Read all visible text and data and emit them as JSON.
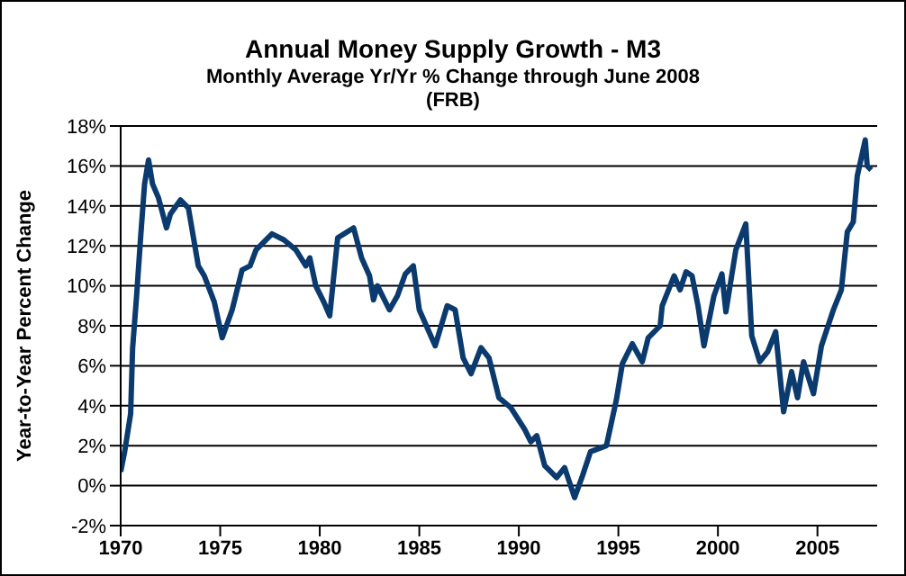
{
  "chart_data": {
    "type": "line",
    "title": "Annual Money Supply Growth - M3",
    "subtitle": "Monthly Average Yr/Yr % Change through June 2008",
    "annotations": [
      "(FRB)"
    ],
    "ylabel": "Year-to-Year Percent Change",
    "x": [
      1970.0,
      1970.2,
      1970.5,
      1970.6,
      1970.8,
      1971.0,
      1971.2,
      1971.4,
      1971.6,
      1971.9,
      1972.3,
      1972.5,
      1973.0,
      1973.4,
      1973.9,
      1974.2,
      1974.7,
      1975.1,
      1975.6,
      1976.1,
      1976.5,
      1976.8,
      1977.6,
      1978.2,
      1978.8,
      1979.3,
      1979.5,
      1979.8,
      1980.2,
      1980.5,
      1980.9,
      1981.7,
      1982.1,
      1982.5,
      1982.7,
      1982.9,
      1983.5,
      1983.9,
      1984.3,
      1984.7,
      1985.0,
      1985.8,
      1986.4,
      1986.8,
      1987.2,
      1987.6,
      1988.1,
      1988.5,
      1989.0,
      1989.6,
      1990.3,
      1990.6,
      1990.9,
      1991.3,
      1991.9,
      1992.3,
      1992.8,
      1993.2,
      1993.6,
      1994.4,
      1994.9,
      1995.2,
      1995.7,
      1996.2,
      1996.5,
      1997.1,
      1997.2,
      1997.8,
      1998.1,
      1998.4,
      1998.7,
      1999.0,
      1999.3,
      1999.8,
      2000.2,
      2000.4,
      2000.9,
      2001.4,
      2001.7,
      2002.1,
      2002.5,
      2002.9,
      2003.3,
      2003.7,
      2004.0,
      2004.3,
      2004.8,
      2005.2,
      2005.8,
      2006.2,
      2006.5,
      2006.8,
      2007.0,
      2007.4,
      2007.5,
      2007.7
    ],
    "series": [
      {
        "color": "#0b3a6e",
        "values": [
          0.7,
          1.7,
          3.6,
          6.9,
          9.5,
          12.4,
          15.1,
          16.3,
          15.1,
          14.4,
          12.9,
          13.6,
          14.3,
          13.9,
          11.0,
          10.5,
          9.2,
          7.4,
          8.8,
          10.8,
          11.0,
          11.8,
          12.6,
          12.3,
          11.8,
          11.0,
          11.4,
          10.0,
          9.2,
          8.5,
          12.4,
          12.9,
          11.4,
          10.5,
          9.3,
          10.0,
          8.8,
          9.5,
          10.6,
          11.0,
          8.8,
          7.0,
          9.0,
          8.8,
          6.4,
          5.6,
          6.9,
          6.4,
          4.4,
          3.9,
          2.8,
          2.2,
          2.5,
          1.0,
          0.4,
          0.9,
          -0.6,
          0.5,
          1.7,
          2.0,
          4.3,
          6.1,
          7.1,
          6.2,
          7.4,
          8.0,
          9.0,
          10.5,
          9.8,
          10.7,
          10.5,
          9.0,
          7.0,
          9.5,
          10.6,
          8.7,
          11.8,
          13.1,
          7.5,
          6.2,
          6.7,
          7.7,
          3.7,
          5.7,
          4.4,
          6.2,
          4.6,
          7.0,
          8.8,
          9.8,
          12.7,
          13.2,
          15.5,
          17.3,
          16.0,
          15.8
        ]
      }
    ],
    "xlim": [
      1970,
      2008
    ],
    "xticks": [
      1970,
      1975,
      1980,
      1985,
      1990,
      1995,
      2000,
      2005
    ],
    "ylim": [
      -2,
      18
    ],
    "yticks": [
      {
        "value": -2,
        "label": "-2%"
      },
      {
        "value": 0,
        "label": "0%"
      },
      {
        "value": 2,
        "label": "2%"
      },
      {
        "value": 4,
        "label": "4%"
      },
      {
        "value": 6,
        "label": "6%"
      },
      {
        "value": 8,
        "label": "8%"
      },
      {
        "value": 10,
        "label": "10%"
      },
      {
        "value": 12,
        "label": "12%"
      },
      {
        "value": 14,
        "label": "14%"
      },
      {
        "value": 16,
        "label": "16%"
      },
      {
        "value": 18,
        "label": "18%"
      }
    ],
    "grid": "y",
    "marker": "none",
    "line_style": "solid"
  }
}
